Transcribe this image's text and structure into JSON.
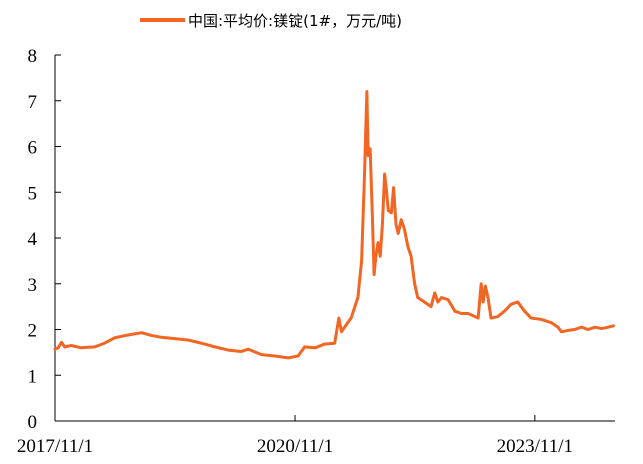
{
  "chart_data": {
    "type": "line",
    "title": "",
    "xlabel": "",
    "ylabel": "",
    "ylim": [
      0,
      8
    ],
    "y_ticks": [
      0,
      1,
      2,
      3,
      4,
      5,
      6,
      7,
      8
    ],
    "x_ticks": [
      "2017/11/1",
      "2020/11/1",
      "2023/11/1"
    ],
    "x_range": [
      "2017/11/1",
      "2024/11/1"
    ],
    "legend": {
      "position": "top-center"
    },
    "grid": false,
    "series": [
      {
        "name": "中国:平均价:镁锭(1#，万元/吨)",
        "color": "#f26522",
        "points": [
          [
            "2017-11-01",
            1.57
          ],
          [
            "2017-11-15",
            1.6
          ],
          [
            "2017-12-01",
            1.72
          ],
          [
            "2017-12-15",
            1.62
          ],
          [
            "2018-01-15",
            1.65
          ],
          [
            "2018-03-01",
            1.6
          ],
          [
            "2018-05-01",
            1.62
          ],
          [
            "2018-06-15",
            1.7
          ],
          [
            "2018-08-01",
            1.82
          ],
          [
            "2018-10-01",
            1.88
          ],
          [
            "2018-12-01",
            1.93
          ],
          [
            "2019-01-15",
            1.87
          ],
          [
            "2019-03-01",
            1.83
          ],
          [
            "2019-05-01",
            1.8
          ],
          [
            "2019-07-01",
            1.77
          ],
          [
            "2019-09-01",
            1.7
          ],
          [
            "2019-11-01",
            1.62
          ],
          [
            "2020-01-01",
            1.55
          ],
          [
            "2020-03-01",
            1.52
          ],
          [
            "2020-04-01",
            1.57
          ],
          [
            "2020-06-01",
            1.45
          ],
          [
            "2020-08-01",
            1.42
          ],
          [
            "2020-10-01",
            1.38
          ],
          [
            "2020-11-15",
            1.42
          ],
          [
            "2020-12-15",
            1.62
          ],
          [
            "2021-02-01",
            1.6
          ],
          [
            "2021-03-15",
            1.68
          ],
          [
            "2021-05-01",
            1.7
          ],
          [
            "2021-05-20",
            2.25
          ],
          [
            "2021-06-01",
            1.95
          ],
          [
            "2021-06-15",
            2.05
          ],
          [
            "2021-07-15",
            2.25
          ],
          [
            "2021-08-15",
            2.7
          ],
          [
            "2021-09-01",
            3.5
          ],
          [
            "2021-09-15",
            5.5
          ],
          [
            "2021-09-25",
            7.2
          ],
          [
            "2021-10-01",
            5.8
          ],
          [
            "2021-10-10",
            5.95
          ],
          [
            "2021-10-20",
            4.5
          ],
          [
            "2021-10-28",
            3.2
          ],
          [
            "2021-11-05",
            3.6
          ],
          [
            "2021-11-15",
            3.9
          ],
          [
            "2021-11-25",
            3.6
          ],
          [
            "2021-12-05",
            4.3
          ],
          [
            "2021-12-15",
            5.4
          ],
          [
            "2021-12-22",
            5.1
          ],
          [
            "2022-01-01",
            4.6
          ],
          [
            "2022-01-15",
            4.55
          ],
          [
            "2022-01-25",
            5.1
          ],
          [
            "2022-02-05",
            4.3
          ],
          [
            "2022-02-15",
            4.1
          ],
          [
            "2022-03-01",
            4.4
          ],
          [
            "2022-03-15",
            4.2
          ],
          [
            "2022-04-01",
            3.8
          ],
          [
            "2022-04-15",
            3.6
          ],
          [
            "2022-05-01",
            3.0
          ],
          [
            "2022-05-15",
            2.7
          ],
          [
            "2022-06-15",
            2.6
          ],
          [
            "2022-07-15",
            2.5
          ],
          [
            "2022-08-01",
            2.8
          ],
          [
            "2022-08-15",
            2.6
          ],
          [
            "2022-09-01",
            2.7
          ],
          [
            "2022-10-01",
            2.65
          ],
          [
            "2022-11-01",
            2.4
          ],
          [
            "2022-12-01",
            2.35
          ],
          [
            "2023-01-01",
            2.35
          ],
          [
            "2023-02-15",
            2.25
          ],
          [
            "2023-03-01",
            3.0
          ],
          [
            "2023-03-10",
            2.6
          ],
          [
            "2023-03-20",
            2.95
          ],
          [
            "2023-04-01",
            2.7
          ],
          [
            "2023-04-15",
            2.25
          ],
          [
            "2023-05-15",
            2.28
          ],
          [
            "2023-06-15",
            2.4
          ],
          [
            "2023-07-15",
            2.55
          ],
          [
            "2023-08-15",
            2.6
          ],
          [
            "2023-09-15",
            2.4
          ],
          [
            "2023-10-15",
            2.25
          ],
          [
            "2023-12-01",
            2.22
          ],
          [
            "2024-01-15",
            2.15
          ],
          [
            "2024-02-15",
            2.05
          ],
          [
            "2024-03-01",
            1.95
          ],
          [
            "2024-04-01",
            1.98
          ],
          [
            "2024-05-01",
            2.0
          ],
          [
            "2024-06-01",
            2.05
          ],
          [
            "2024-07-01",
            2.0
          ],
          [
            "2024-08-01",
            2.05
          ],
          [
            "2024-09-01",
            2.02
          ],
          [
            "2024-10-01",
            2.05
          ],
          [
            "2024-10-25",
            2.08
          ]
        ]
      }
    ]
  }
}
